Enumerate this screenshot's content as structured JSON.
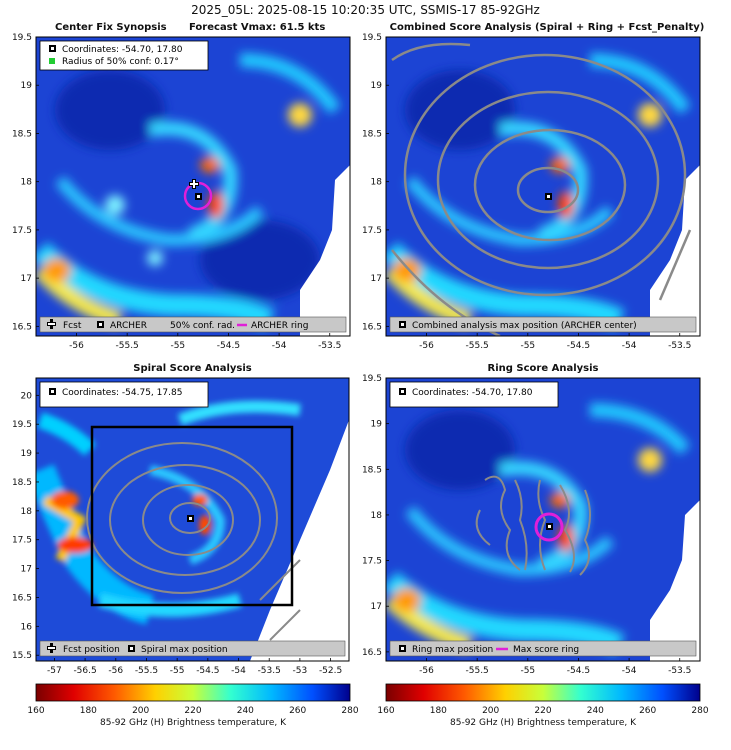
{
  "title": "2025_05L: 2025-08-15 10:20:35 UTC, SSMIS-17 85-92GHz",
  "colormap": [
    "#7a0000",
    "#e00000",
    "#ff5a00",
    "#ffd000",
    "#c8ff3a",
    "#33ffd0",
    "#00b8ff",
    "#0050ff",
    "#00008c"
  ],
  "panels": {
    "p1": {
      "title_left": "Center Fix Synopsis",
      "title_right": "Forecast Vmax: 61.5 kts",
      "info": [
        "Coordinates: -54.70, 17.80",
        "Radius of 50% conf: 0.17°"
      ],
      "legend": [
        "Fcst",
        "ARCHER",
        "50% conf. rad.",
        "ARCHER ring"
      ],
      "xticks": [
        "-56",
        "-55.5",
        "-55",
        "-54.5",
        "-54",
        "-53.5"
      ],
      "yticks": [
        "19.5",
        "19",
        "18.5",
        "18",
        "17.5",
        "17",
        "16.5"
      ]
    },
    "p2": {
      "title": "Combined Score Analysis (Spiral + Ring + Fcst_Penalty)",
      "legend": [
        "Combined analysis max position (ARCHER center)"
      ],
      "xticks": [
        "-56",
        "-55.5",
        "-55",
        "-54.5",
        "-54",
        "-53.5"
      ],
      "yticks": [
        "19.5",
        "19",
        "18.5",
        "18",
        "17.5",
        "17",
        "16.5"
      ]
    },
    "p3": {
      "title": "Spiral Score Analysis",
      "info": [
        "Coordinates: -54.75, 17.85"
      ],
      "legend": [
        "Fcst position",
        "Spiral max position"
      ],
      "xticks": [
        "-57",
        "-56.5",
        "-56",
        "-55.5",
        "-55",
        "-54.5",
        "-54",
        "-53.5",
        "-53",
        "-52.5"
      ],
      "yticks": [
        "20",
        "19.5",
        "19",
        "18.5",
        "18",
        "17.5",
        "17",
        "16.5",
        "16",
        "15.5"
      ]
    },
    "p4": {
      "title": "Ring Score Analysis",
      "info": [
        "Coordinates: -54.70, 17.80"
      ],
      "legend": [
        "Ring max position",
        "Max score ring"
      ],
      "xticks": [
        "-56",
        "-55.5",
        "-55",
        "-54.5",
        "-54",
        "-53.5"
      ],
      "yticks": [
        "19.5",
        "19",
        "18.5",
        "18",
        "17.5",
        "17",
        "16.5"
      ]
    }
  },
  "colorbar": {
    "ticks": [
      "160",
      "180",
      "200",
      "220",
      "240",
      "260",
      "280"
    ],
    "label": "85-92 GHz (H) Brightness temperature, K"
  },
  "chart_data": [
    {
      "type": "heatmap",
      "title": "Center Fix Synopsis",
      "subtitle": "Forecast Vmax: 61.5 kts",
      "xlim": [
        -56.4,
        -53.3
      ],
      "ylim": [
        16.4,
        19.5
      ],
      "archer_center": [
        -54.7,
        17.8
      ],
      "fcst_position": [
        -54.75,
        17.87
      ],
      "conf_radius_50pct_deg": 0.17,
      "units": "K"
    },
    {
      "type": "heatmap",
      "title": "Combined Score Analysis (Spiral + Ring + Fcst_Penalty)",
      "xlim": [
        -56.4,
        -53.3
      ],
      "ylim": [
        16.4,
        19.5
      ],
      "max_position": [
        -54.7,
        17.8
      ]
    },
    {
      "type": "heatmap",
      "title": "Spiral Score Analysis",
      "xlim": [
        -57.3,
        -52.2
      ],
      "ylim": [
        15.4,
        20.3
      ],
      "max_position": [
        -54.75,
        17.85
      ],
      "fcst_position": [
        -54.75,
        17.87
      ],
      "search_box": [
        [
          -56.5,
          16.3
        ],
        [
          -53.1,
          19.5
        ]
      ]
    },
    {
      "type": "heatmap",
      "title": "Ring Score Analysis",
      "xlim": [
        -56.4,
        -53.3
      ],
      "ylim": [
        16.4,
        19.5
      ],
      "max_position": [
        -54.7,
        17.8
      ]
    },
    {
      "type": "colorbar",
      "label": "85-92 GHz (H) Brightness temperature, K",
      "range": [
        160,
        280
      ],
      "ticks": [
        160,
        180,
        200,
        220,
        240,
        260,
        280
      ]
    }
  ]
}
